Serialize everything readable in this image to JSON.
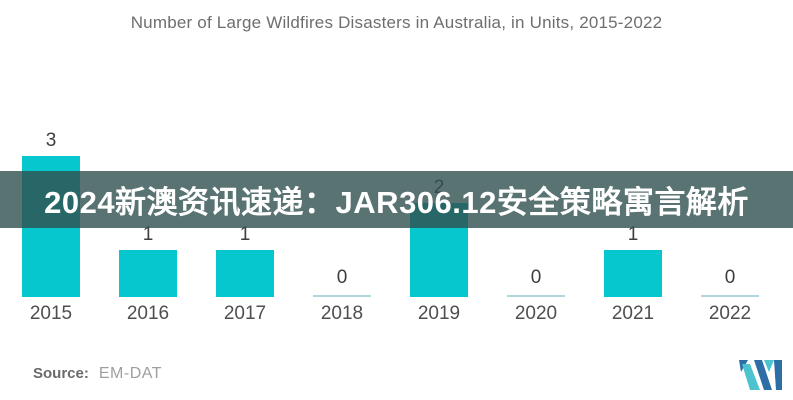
{
  "title": "Number of Large Wildfires Disasters in Australia, in Units, 2015-2022",
  "overlay_banner": {
    "text": "2024新澳资讯速递：JAR306.12安全策略寓言解析",
    "bg_color": "rgba(47,79,79,0.8)",
    "text_color": "#ffffff"
  },
  "footer": {
    "source_label": "Source:",
    "source_value": "EM-DAT"
  },
  "logo": {
    "name": "brand-m-logo",
    "blue": "#2e6ea6",
    "teal": "#4cc3ce"
  },
  "chart_data": {
    "type": "bar",
    "title": "Number of Large Wildfires Disasters in Australia, in Units, 2015-2022",
    "categories": [
      "2015",
      "2016",
      "2017",
      "2018",
      "2019",
      "2020",
      "2021",
      "2022"
    ],
    "values": [
      3,
      1,
      1,
      0,
      2,
      0,
      1,
      0
    ],
    "xlabel": "",
    "ylabel": "",
    "ylim": [
      0,
      3
    ],
    "bar_color": "#06c7cd",
    "zero_line_color": "#aed8de",
    "label_color": "#3e3e3e",
    "data_labels": true,
    "grid": false,
    "legend": false
  }
}
